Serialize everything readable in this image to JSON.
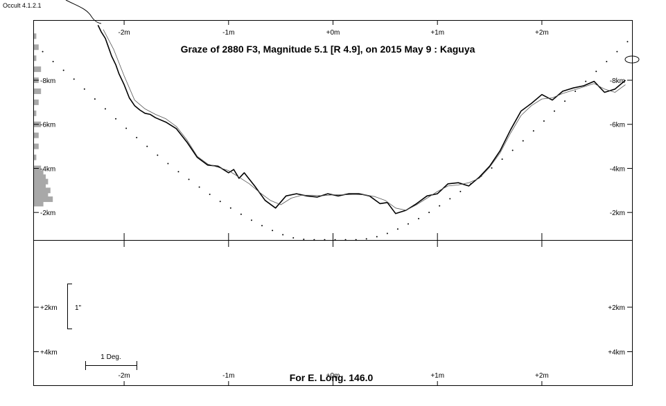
{
  "app": {
    "version_label": "Occult 4.1.2.1"
  },
  "chart_data": {
    "type": "line",
    "title": "Graze of  2880 F3,  Magnitude 5.1 [R 4.9],  on 2015 May  9  :  Kaguya",
    "footer": "For E. Long. 146.0",
    "x_unit": "min",
    "y_unit": "km",
    "xlim": [
      -2.87,
      2.87
    ],
    "top_panel": {
      "ylim": [
        0.75,
        10.7
      ],
      "x_ticks": [
        -2,
        -1,
        0,
        1,
        2
      ],
      "x_tick_labels": [
        "-2m",
        "-1m",
        "+0m",
        "+1m",
        "+2m"
      ],
      "y_ticks": [
        8,
        6,
        4,
        2
      ],
      "y_tick_labels": [
        "-8km",
        "-6km",
        "-4km",
        "-2km"
      ]
    },
    "bottom_panel": {
      "ylim": [
        0.95,
        -3.4
      ],
      "x_ticks": [
        -2,
        -1,
        0,
        1,
        2
      ],
      "x_tick_labels": [
        "-2m",
        "-1m",
        "+0m",
        "+1m",
        "+2m"
      ],
      "y_ticks": [
        2,
        4
      ],
      "y_tick_labels": [
        "+2km",
        "+4km"
      ],
      "scale_bar_label": "1\"",
      "deg_bar_label": "1 Deg."
    },
    "series": [
      {
        "x": [
          -2.25,
          -2.22,
          -2.18,
          -2.15,
          -2.12,
          -2.08,
          -2.05,
          -2.0,
          -1.95,
          -1.9,
          -1.85,
          -1.8,
          -1.75,
          -1.7,
          -1.6,
          -1.5,
          -1.4,
          -1.3,
          -1.2,
          -1.1,
          -1.05,
          -1.0,
          -0.95,
          -0.9,
          -0.85,
          -0.75,
          -0.65,
          -0.55,
          -0.45,
          -0.35,
          -0.25,
          -0.15,
          -0.05,
          0.05,
          0.15,
          0.25,
          0.35,
          0.45,
          0.52,
          0.6,
          0.7,
          0.8,
          0.9,
          1.0,
          1.1,
          1.2,
          1.3,
          1.4,
          1.5,
          1.6,
          1.7,
          1.8,
          1.9,
          2.0,
          2.1,
          2.2,
          2.3,
          2.4,
          2.5,
          2.6,
          2.7,
          2.8
        ],
        "y": [
          10.5,
          10.2,
          9.9,
          9.5,
          9.1,
          8.7,
          8.3,
          7.8,
          7.2,
          6.85,
          6.65,
          6.5,
          6.45,
          6.3,
          6.1,
          5.8,
          5.2,
          4.5,
          4.15,
          4.1,
          3.95,
          3.8,
          3.95,
          3.55,
          3.8,
          3.2,
          2.55,
          2.2,
          2.75,
          2.85,
          2.75,
          2.7,
          2.85,
          2.75,
          2.85,
          2.85,
          2.75,
          2.4,
          2.45,
          1.95,
          2.1,
          2.4,
          2.75,
          2.85,
          3.3,
          3.35,
          3.2,
          3.6,
          4.1,
          4.8,
          5.75,
          6.6,
          6.95,
          7.35,
          7.1,
          7.5,
          7.65,
          7.75,
          7.95,
          7.45,
          7.6,
          8.0
        ]
      },
      {
        "x": [
          -2.2,
          -2.1,
          -2.0,
          -1.9,
          -1.8,
          -1.7,
          -1.6,
          -1.5,
          -1.4,
          -1.3,
          -1.2,
          -1.1,
          -1.0,
          -0.9,
          -0.8,
          -0.7,
          -0.6,
          -0.5,
          -0.4,
          -0.3,
          -0.2,
          -0.1,
          0.0,
          0.1,
          0.2,
          0.3,
          0.4,
          0.5,
          0.6,
          0.7,
          0.8,
          0.9,
          1.0,
          1.1,
          1.2,
          1.3,
          1.4,
          1.5,
          1.6,
          1.7,
          1.8,
          1.9,
          2.0,
          2.1,
          2.2,
          2.3,
          2.4,
          2.5,
          2.6,
          2.7,
          2.8
        ],
        "y": [
          10.3,
          9.4,
          8.2,
          7.1,
          6.7,
          6.45,
          6.25,
          5.9,
          5.3,
          4.55,
          4.2,
          4.05,
          3.9,
          3.6,
          3.3,
          2.9,
          2.55,
          2.35,
          2.65,
          2.78,
          2.78,
          2.76,
          2.8,
          2.8,
          2.82,
          2.8,
          2.72,
          2.55,
          2.2,
          2.1,
          2.35,
          2.65,
          2.95,
          3.2,
          3.25,
          3.35,
          3.55,
          4.05,
          4.7,
          5.6,
          6.4,
          6.85,
          7.15,
          7.2,
          7.4,
          7.55,
          7.7,
          7.85,
          7.6,
          7.45,
          7.8
        ]
      },
      {
        "x": [
          -2.78,
          -2.68,
          -2.58,
          -2.48,
          -2.38,
          -2.28,
          -2.18,
          -2.08,
          -1.98,
          -1.88,
          -1.78,
          -1.68,
          -1.58,
          -1.48,
          -1.38,
          -1.28,
          -1.18,
          -1.08,
          -0.98,
          -0.88,
          -0.78,
          -0.68,
          -0.58,
          -0.48,
          -0.38,
          -0.28,
          -0.18,
          -0.08,
          0.02,
          0.12,
          0.22,
          0.32,
          0.42,
          0.52,
          0.62,
          0.72,
          0.82,
          0.92,
          1.02,
          1.12,
          1.22,
          1.32,
          1.42,
          1.52,
          1.62,
          1.72,
          1.82,
          1.92,
          2.02,
          2.12,
          2.22,
          2.32,
          2.42,
          2.52,
          2.62,
          2.72,
          2.82
        ],
        "y": [
          9.3,
          8.85,
          8.45,
          8.05,
          7.6,
          7.15,
          6.7,
          6.25,
          5.82,
          5.4,
          5.0,
          4.6,
          4.22,
          3.85,
          3.5,
          3.15,
          2.82,
          2.5,
          2.2,
          1.92,
          1.65,
          1.4,
          1.18,
          0.99,
          0.85,
          0.78,
          0.76,
          0.76,
          0.76,
          0.76,
          0.76,
          0.8,
          0.9,
          1.05,
          1.25,
          1.48,
          1.72,
          2.0,
          2.3,
          2.62,
          2.95,
          3.3,
          3.65,
          4.02,
          4.42,
          4.82,
          5.25,
          5.7,
          6.15,
          6.6,
          7.05,
          7.5,
          7.95,
          8.4,
          8.85,
          9.3,
          9.75
        ]
      }
    ],
    "side_histogram": {
      "y": [
        10.0,
        9.5,
        9.0,
        8.5,
        8.0,
        7.5,
        7.0,
        6.5,
        6.0,
        5.5,
        5.0,
        4.5,
        4.0,
        3.8,
        3.6,
        3.4,
        3.2,
        3.0,
        2.8,
        2.6,
        2.4
      ],
      "values": [
        1,
        2,
        1,
        3,
        2,
        3,
        2,
        1,
        3,
        2,
        2,
        1,
        3,
        4,
        5,
        6,
        5,
        7,
        6,
        8,
        4
      ]
    }
  }
}
